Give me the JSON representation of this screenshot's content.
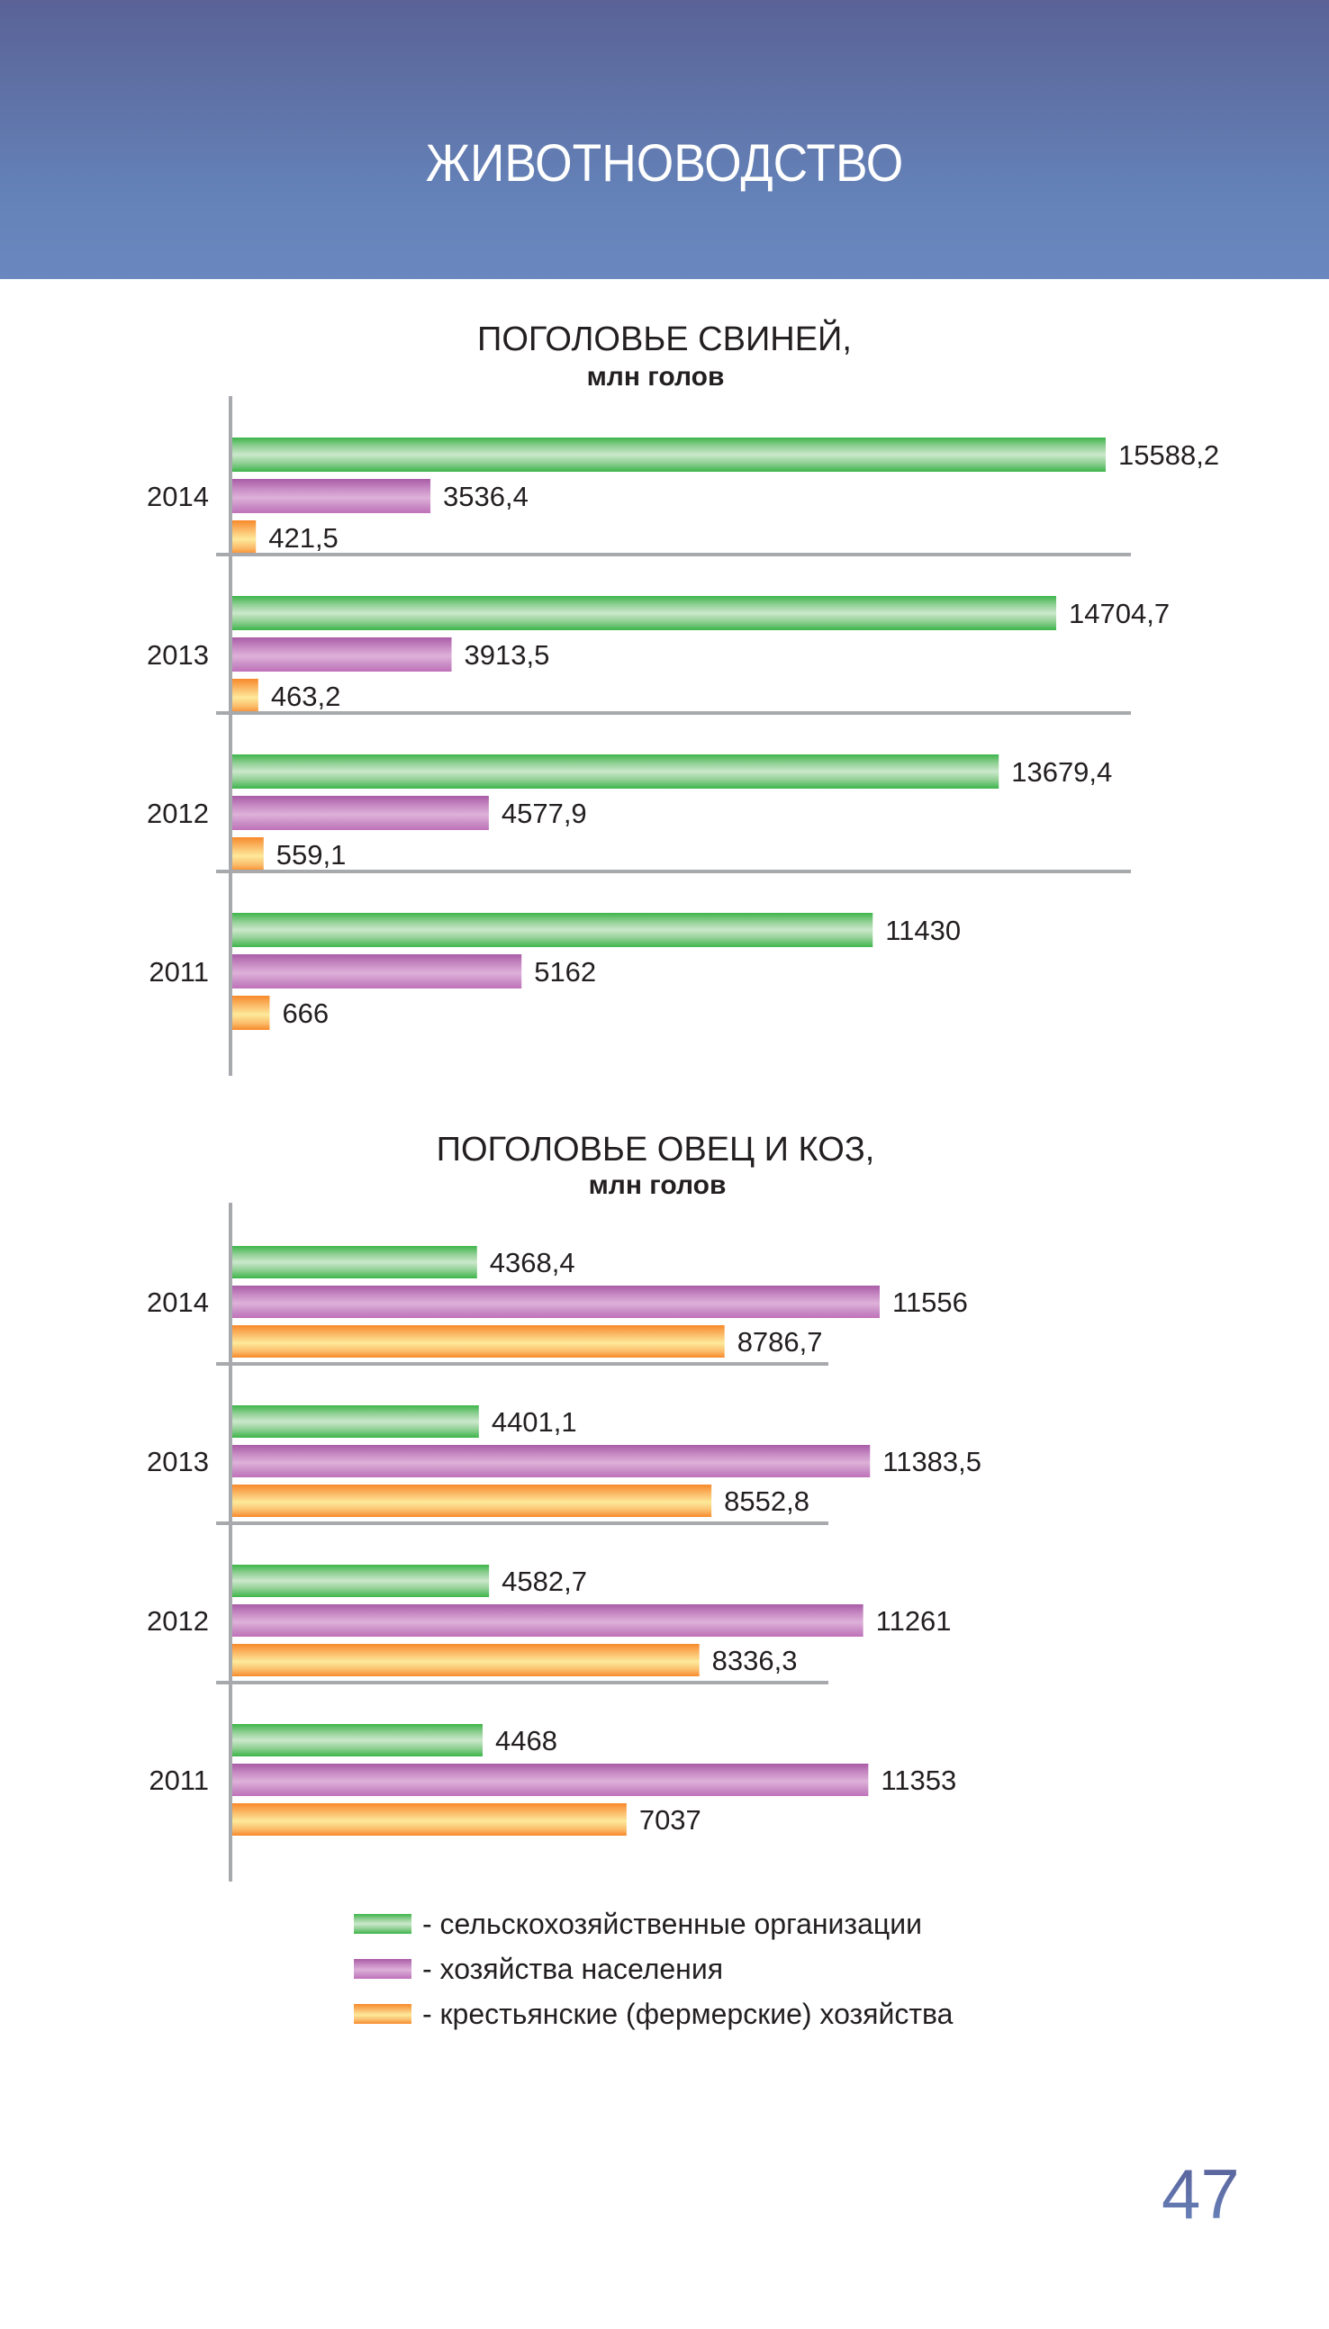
{
  "header": {
    "title": "ЖИВОТНОВОДСТВО",
    "colors": {
      "top": "#5a6296",
      "bottom": "#6b87c0"
    }
  },
  "page_number": "47",
  "legend": [
    {
      "label": "- сельскохозяйственные организации",
      "color": "#3db54a"
    },
    {
      "label": "- хозяйства населения",
      "color": "#a95ca6"
    },
    {
      "label": "- крестьянские (фермерские) хозяйства",
      "color": "#f7892b"
    }
  ],
  "chart_data": [
    {
      "type": "bar",
      "orientation": "horizontal",
      "title": "ПОГОЛОВЬЕ СВИНЕЙ,",
      "subtitle": "млн голов",
      "categories": [
        "2014",
        "2013",
        "2012",
        "2011"
      ],
      "series": [
        {
          "name": "сельскохозяйственные организации",
          "values": [
            15588.2,
            14704.7,
            13679.4,
            11430
          ],
          "labels": [
            "15588,2",
            "14704,7",
            "13679,4",
            "11430"
          ]
        },
        {
          "name": "хозяйства населения",
          "values": [
            3536.4,
            3913.5,
            4577.9,
            5162
          ],
          "labels": [
            "3536,4",
            "3913,5",
            "4577,9",
            "5162"
          ]
        },
        {
          "name": "крестьянские (фермерские) хозяйства",
          "values": [
            421.5,
            463.2,
            559.1,
            666
          ],
          "labels": [
            "421,5",
            "463,2",
            "559,1",
            "666"
          ]
        }
      ],
      "xlabel": "",
      "ylabel": "",
      "xlim": [
        0,
        16000
      ],
      "grid": false,
      "legend": "bottom"
    },
    {
      "type": "bar",
      "orientation": "horizontal",
      "title": "ПОГОЛОВЬЕ ОВЕЦ И КОЗ,",
      "subtitle": "млн голов",
      "categories": [
        "2014",
        "2013",
        "2012",
        "2011"
      ],
      "series": [
        {
          "name": "сельскохозяйственные организации",
          "values": [
            4368.4,
            4401.1,
            4582.7,
            4468
          ],
          "labels": [
            "4368,4",
            "4401,1",
            "4582,7",
            "4468"
          ]
        },
        {
          "name": "хозяйства населения",
          "values": [
            11556,
            11383.5,
            11261,
            11353
          ],
          "labels": [
            "11556",
            "11383,5",
            "11261",
            "11353"
          ]
        },
        {
          "name": "крестьянские (фермерские) хозяйства",
          "values": [
            8786.7,
            8552.8,
            8336.3,
            7037
          ],
          "labels": [
            "8786,7",
            "8552,8",
            "8336,3",
            "7037"
          ]
        }
      ],
      "xlabel": "",
      "ylabel": "",
      "xlim": [
        0,
        16000
      ],
      "grid": false,
      "legend": "bottom"
    }
  ]
}
